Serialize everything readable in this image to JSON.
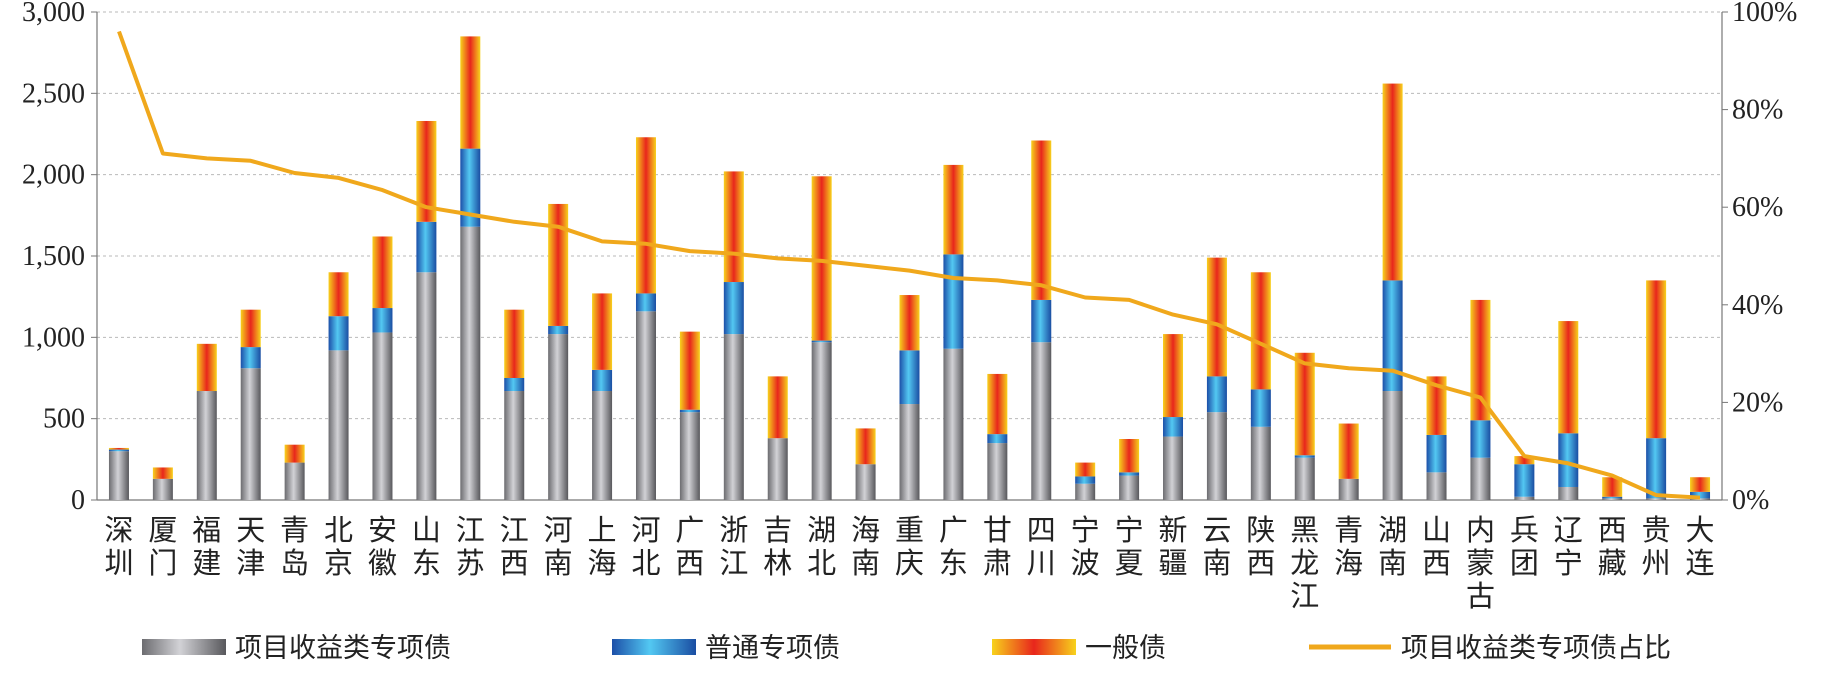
{
  "chart_data": {
    "type": "bar",
    "stacked": true,
    "categories": [
      "深圳",
      "厦门",
      "福建",
      "天津",
      "青岛",
      "北京",
      "安徽",
      "山东",
      "江苏",
      "江西",
      "河南",
      "上海",
      "河北",
      "广西",
      "浙江",
      "吉林",
      "湖北",
      "海南",
      "重庆",
      "广东",
      "甘肃",
      "四川",
      "宁波",
      "宁夏",
      "新疆",
      "云南",
      "陕西",
      "黑龙江",
      "青海",
      "湖南",
      "山西",
      "内蒙古",
      "兵团",
      "辽宁",
      "西藏",
      "贵州",
      "大连"
    ],
    "series": [
      {
        "name": "项目收益类专项债",
        "color": "#8e8e93",
        "values": [
          300,
          130,
          670,
          810,
          230,
          920,
          1030,
          1400,
          1680,
          670,
          1020,
          670,
          1160,
          540,
          1020,
          380,
          970,
          220,
          590,
          930,
          350,
          970,
          100,
          150,
          390,
          540,
          450,
          260,
          130,
          670,
          170,
          260,
          20,
          80,
          10,
          10,
          10
        ]
      },
      {
        "name": "普通专项债",
        "color": "#2f7fd2",
        "values": [
          10,
          0,
          0,
          130,
          0,
          210,
          150,
          310,
          480,
          80,
          50,
          130,
          110,
          15,
          320,
          0,
          10,
          0,
          330,
          580,
          55,
          260,
          45,
          20,
          120,
          220,
          230,
          15,
          0,
          680,
          230,
          230,
          200,
          330,
          10,
          370,
          40
        ]
      },
      {
        "name": "一般债",
        "color": "#f28a1e",
        "values": [
          10,
          70,
          290,
          230,
          110,
          270,
          440,
          620,
          690,
          420,
          750,
          470,
          960,
          480,
          680,
          380,
          1010,
          220,
          340,
          550,
          370,
          980,
          85,
          205,
          510,
          730,
          720,
          630,
          340,
          1210,
          360,
          740,
          50,
          690,
          120,
          970,
          90
        ]
      }
    ],
    "line_series": {
      "name": "项目收益类专项债占比",
      "color": "#f0a81c",
      "axis": "right",
      "values": [
        0.96,
        0.71,
        0.7,
        0.695,
        0.67,
        0.66,
        0.635,
        0.6,
        0.585,
        0.57,
        0.56,
        0.53,
        0.525,
        0.51,
        0.505,
        0.495,
        0.49,
        0.48,
        0.47,
        0.455,
        0.45,
        0.44,
        0.415,
        0.41,
        0.38,
        0.36,
        0.32,
        0.28,
        0.27,
        0.265,
        0.235,
        0.21,
        0.09,
        0.075,
        0.05,
        0.01,
        0.005
      ]
    },
    "left_axis": {
      "min": 0,
      "max": 3000,
      "ticks": [
        "0",
        "500",
        "1,000",
        "1,500",
        "2,000",
        "2,500",
        "3,000"
      ]
    },
    "right_axis": {
      "min": 0,
      "max": 1,
      "ticks": [
        "0%",
        "20%",
        "40%",
        "60%",
        "80%",
        "100%"
      ]
    },
    "grid": true,
    "legend_position": "bottom",
    "title": "",
    "xlabel": "",
    "ylabel": ""
  }
}
